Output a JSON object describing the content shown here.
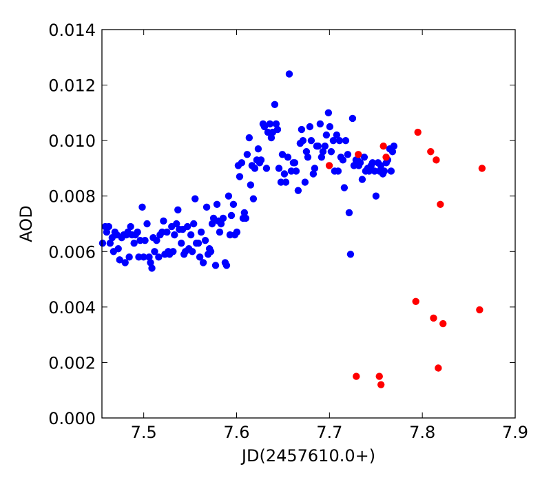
{
  "chart_data": {
    "type": "scatter",
    "title": "",
    "xlabel": "JD(2457610.0+)",
    "ylabel": "AOD",
    "xlim": [
      7.455,
      7.9
    ],
    "ylim": [
      0.0,
      0.014
    ],
    "x_ticks": [
      7.5,
      7.6,
      7.7,
      7.8,
      7.9
    ],
    "x_tick_labels": [
      "7.5",
      "7.6",
      "7.7",
      "7.8",
      "7.9"
    ],
    "y_ticks": [
      0.0,
      0.002,
      0.004,
      0.006,
      0.008,
      0.01,
      0.012,
      0.014
    ],
    "y_tick_labels": [
      "0.000",
      "0.002",
      "0.004",
      "0.006",
      "0.008",
      "0.010",
      "0.012",
      "0.014"
    ],
    "grid": false,
    "series": [
      {
        "color": "#0000ff",
        "points": [
          [
            7.4557,
            0.0063
          ],
          [
            7.4586,
            0.0069
          ],
          [
            7.4601,
            0.0067
          ],
          [
            7.4623,
            0.0069
          ],
          [
            7.4638,
            0.0063
          ],
          [
            7.466,
            0.0065
          ],
          [
            7.4675,
            0.006
          ],
          [
            7.469,
            0.0067
          ],
          [
            7.4711,
            0.0066
          ],
          [
            7.4726,
            0.0061
          ],
          [
            7.4741,
            0.0057
          ],
          [
            7.4763,
            0.0065
          ],
          [
            7.4785,
            0.0066
          ],
          [
            7.48,
            0.0056
          ],
          [
            7.4815,
            0.0066
          ],
          [
            7.4829,
            0.0067
          ],
          [
            7.4844,
            0.0058
          ],
          [
            7.4859,
            0.0069
          ],
          [
            7.4874,
            0.0066
          ],
          [
            7.4896,
            0.0063
          ],
          [
            7.4911,
            0.0066
          ],
          [
            7.4933,
            0.0067
          ],
          [
            7.4947,
            0.0058
          ],
          [
            7.4962,
            0.0064
          ],
          [
            7.4984,
            0.0076
          ],
          [
            7.4999,
            0.0058
          ],
          [
            7.5014,
            0.0064
          ],
          [
            7.5036,
            0.007
          ],
          [
            7.5058,
            0.0058
          ],
          [
            7.5073,
            0.0056
          ],
          [
            7.5088,
            0.0054
          ],
          [
            7.5102,
            0.0065
          ],
          [
            7.5117,
            0.006
          ],
          [
            7.5139,
            0.0064
          ],
          [
            7.5161,
            0.0058
          ],
          [
            7.5176,
            0.0066
          ],
          [
            7.5198,
            0.0067
          ],
          [
            7.5213,
            0.0071
          ],
          [
            7.5228,
            0.0059
          ],
          [
            7.525,
            0.0067
          ],
          [
            7.5264,
            0.006
          ],
          [
            7.5279,
            0.0059
          ],
          [
            7.5301,
            0.0069
          ],
          [
            7.5316,
            0.006
          ],
          [
            7.5331,
            0.0066
          ],
          [
            7.5353,
            0.007
          ],
          [
            7.5368,
            0.0075
          ],
          [
            7.5383,
            0.0068
          ],
          [
            7.5405,
            0.0063
          ],
          [
            7.542,
            0.0068
          ],
          [
            7.5434,
            0.0059
          ],
          [
            7.5449,
            0.006
          ],
          [
            7.5471,
            0.0069
          ],
          [
            7.5486,
            0.0061
          ],
          [
            7.5508,
            0.0066
          ],
          [
            7.5523,
            0.006
          ],
          [
            7.5538,
            0.007
          ],
          [
            7.5553,
            0.0079
          ],
          [
            7.5567,
            0.0063
          ],
          [
            7.5589,
            0.0063
          ],
          [
            7.5604,
            0.0058
          ],
          [
            7.5619,
            0.0067
          ],
          [
            7.5641,
            0.0056
          ],
          [
            7.5663,
            0.0064
          ],
          [
            7.5678,
            0.0076
          ],
          [
            7.5693,
            0.0059
          ],
          [
            7.5708,
            0.0061
          ],
          [
            7.5722,
            0.006
          ],
          [
            7.5737,
            0.007
          ],
          [
            7.5752,
            0.0072
          ],
          [
            7.5774,
            0.0055
          ],
          [
            7.5789,
            0.0077
          ],
          [
            7.5804,
            0.0071
          ],
          [
            7.5818,
            0.0067
          ],
          [
            7.5833,
            0.007
          ],
          [
            7.5855,
            0.0072
          ],
          [
            7.5877,
            0.0056
          ],
          [
            7.5892,
            0.0055
          ],
          [
            7.5914,
            0.008
          ],
          [
            7.5929,
            0.0066
          ],
          [
            7.5944,
            0.0073
          ],
          [
            7.5966,
            0.0077
          ],
          [
            7.5981,
            0.0066
          ],
          [
            7.6003,
            0.0067
          ],
          [
            7.6018,
            0.0091
          ],
          [
            7.6033,
            0.0087
          ],
          [
            7.6055,
            0.0092
          ],
          [
            7.607,
            0.0072
          ],
          [
            7.6084,
            0.0074
          ],
          [
            7.6099,
            0.0072
          ],
          [
            7.6114,
            0.0095
          ],
          [
            7.6136,
            0.0101
          ],
          [
            7.6151,
            0.0084
          ],
          [
            7.6166,
            0.0091
          ],
          [
            7.6181,
            0.0079
          ],
          [
            7.6196,
            0.009
          ],
          [
            7.6218,
            0.0093
          ],
          [
            7.6233,
            0.0097
          ],
          [
            7.6248,
            0.0092
          ],
          [
            7.6263,
            0.0093
          ],
          [
            7.6285,
            0.0106
          ],
          [
            7.63,
            0.0105
          ],
          [
            7.6322,
            0.009
          ],
          [
            7.6337,
            0.0103
          ],
          [
            7.6359,
            0.0106
          ],
          [
            7.6374,
            0.0101
          ],
          [
            7.6389,
            0.0103
          ],
          [
            7.6411,
            0.0113
          ],
          [
            7.6426,
            0.0106
          ],
          [
            7.6441,
            0.0104
          ],
          [
            7.6456,
            0.009
          ],
          [
            7.6478,
            0.0085
          ],
          [
            7.6493,
            0.0095
          ],
          [
            7.6515,
            0.0088
          ],
          [
            7.653,
            0.0085
          ],
          [
            7.6552,
            0.0094
          ],
          [
            7.6567,
            0.0124
          ],
          [
            7.6589,
            0.0089
          ],
          [
            7.6611,
            0.0092
          ],
          [
            7.6626,
            0.0092
          ],
          [
            7.6641,
            0.0089
          ],
          [
            7.6663,
            0.0082
          ],
          [
            7.6685,
            0.0099
          ],
          [
            7.67,
            0.0104
          ],
          [
            7.6715,
            0.01
          ],
          [
            7.6737,
            0.0085
          ],
          [
            7.6752,
            0.0096
          ],
          [
            7.6767,
            0.0094
          ],
          [
            7.6789,
            0.0105
          ],
          [
            7.6804,
            0.01
          ],
          [
            7.6826,
            0.0088
          ],
          [
            7.6841,
            0.009
          ],
          [
            7.6863,
            0.0098
          ],
          [
            7.6878,
            0.0098
          ],
          [
            7.69,
            0.0106
          ],
          [
            7.6915,
            0.0094
          ],
          [
            7.693,
            0.0096
          ],
          [
            7.6952,
            0.0098
          ],
          [
            7.6967,
            0.0102
          ],
          [
            7.6989,
            0.011
          ],
          [
            7.7004,
            0.0105
          ],
          [
            7.7019,
            0.0096
          ],
          [
            7.7041,
            0.01
          ],
          [
            7.7056,
            0.0089
          ],
          [
            7.7078,
            0.0102
          ],
          [
            7.7093,
            0.0089
          ],
          [
            7.7108,
            0.01
          ],
          [
            7.7123,
            0.0094
          ],
          [
            7.7145,
            0.0093
          ],
          [
            7.716,
            0.0083
          ],
          [
            7.7175,
            0.01
          ],
          [
            7.7197,
            0.0095
          ],
          [
            7.7212,
            0.0074
          ],
          [
            7.7227,
            0.0059
          ],
          [
            7.7249,
            0.0108
          ],
          [
            7.7264,
            0.0091
          ],
          [
            7.7286,
            0.0093
          ],
          [
            7.7301,
            0.0093
          ],
          [
            7.7316,
            0.0091
          ],
          [
            7.7331,
            0.0092
          ],
          [
            7.7353,
            0.0086
          ],
          [
            7.7375,
            0.0094
          ],
          [
            7.739,
            0.0089
          ],
          [
            7.7412,
            0.009
          ],
          [
            7.7427,
            0.0089
          ],
          [
            7.7449,
            0.0091
          ],
          [
            7.7464,
            0.0092
          ],
          [
            7.7486,
            0.0089
          ],
          [
            7.7501,
            0.008
          ],
          [
            7.7523,
            0.0092
          ],
          [
            7.7538,
            0.0089
          ],
          [
            7.7553,
            0.0091
          ],
          [
            7.7575,
            0.0088
          ],
          [
            7.759,
            0.0089
          ],
          [
            7.7612,
            0.0092
          ],
          [
            7.7627,
            0.0093
          ],
          [
            7.7649,
            0.0097
          ],
          [
            7.7664,
            0.0089
          ],
          [
            7.7679,
            0.0096
          ],
          [
            7.7694,
            0.0098
          ]
        ]
      },
      {
        "color": "#ff0000",
        "points": [
          [
            7.6998,
            0.0091
          ],
          [
            7.7289,
            0.0015
          ],
          [
            7.7311,
            0.0095
          ],
          [
            7.7537,
            0.0015
          ],
          [
            7.7555,
            0.0012
          ],
          [
            7.7581,
            0.0098
          ],
          [
            7.761,
            0.0094
          ],
          [
            7.793,
            0.0042
          ],
          [
            7.7952,
            0.0103
          ],
          [
            7.809,
            0.0096
          ],
          [
            7.8121,
            0.0036
          ],
          [
            7.815,
            0.0093
          ],
          [
            7.8172,
            0.0018
          ],
          [
            7.8194,
            0.0077
          ],
          [
            7.8223,
            0.0034
          ],
          [
            7.8617,
            0.0039
          ],
          [
            7.8643,
            0.009
          ]
        ]
      }
    ]
  }
}
